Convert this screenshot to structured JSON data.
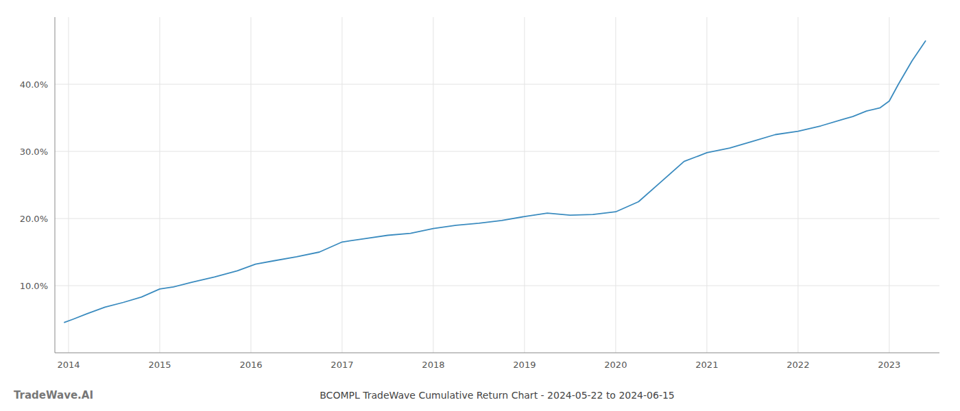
{
  "chart_data": {
    "type": "line",
    "title": "BCOMPL TradeWave Cumulative Return Chart - 2024-05-22 to 2024-06-15",
    "annotations": [
      "TradeWave.AI"
    ],
    "x": [
      2013.95,
      2014.05,
      2014.2,
      2014.4,
      2014.6,
      2014.8,
      2015.0,
      2015.15,
      2015.35,
      2015.6,
      2015.85,
      2016.05,
      2016.25,
      2016.5,
      2016.75,
      2017.0,
      2017.25,
      2017.5,
      2017.75,
      2018.0,
      2018.25,
      2018.5,
      2018.75,
      2019.0,
      2019.1,
      2019.25,
      2019.5,
      2019.75,
      2020.0,
      2020.25,
      2020.5,
      2020.75,
      2021.0,
      2021.25,
      2021.5,
      2021.75,
      2022.0,
      2022.25,
      2022.5,
      2022.6,
      2022.75,
      2022.9,
      2023.0,
      2023.1,
      2023.25,
      2023.4
    ],
    "values": [
      4.5,
      5.0,
      5.8,
      6.8,
      7.5,
      8.3,
      9.5,
      9.8,
      10.5,
      11.3,
      12.2,
      13.2,
      13.7,
      14.3,
      15.0,
      16.5,
      17.0,
      17.5,
      17.8,
      18.5,
      19.0,
      19.3,
      19.7,
      20.3,
      20.5,
      20.8,
      20.5,
      20.6,
      21.0,
      22.5,
      25.5,
      28.5,
      29.8,
      30.5,
      31.5,
      32.5,
      33.0,
      33.8,
      34.8,
      35.2,
      36.0,
      36.5,
      37.5,
      40.0,
      43.5,
      46.5
    ],
    "color": "#3a8bbf",
    "xlim": [
      2013.85,
      2023.55
    ],
    "xticks": [
      2014,
      2015,
      2016,
      2017,
      2018,
      2019,
      2020,
      2021,
      2022,
      2023
    ],
    "ylim": [
      0,
      50
    ],
    "yticks": [
      {
        "value": 10.0,
        "label": "10.0%"
      },
      {
        "value": 20.0,
        "label": "20.0%"
      },
      {
        "value": 30.0,
        "label": "30.0%"
      },
      {
        "value": 40.0,
        "label": "40.0%"
      }
    ],
    "grid": true
  }
}
